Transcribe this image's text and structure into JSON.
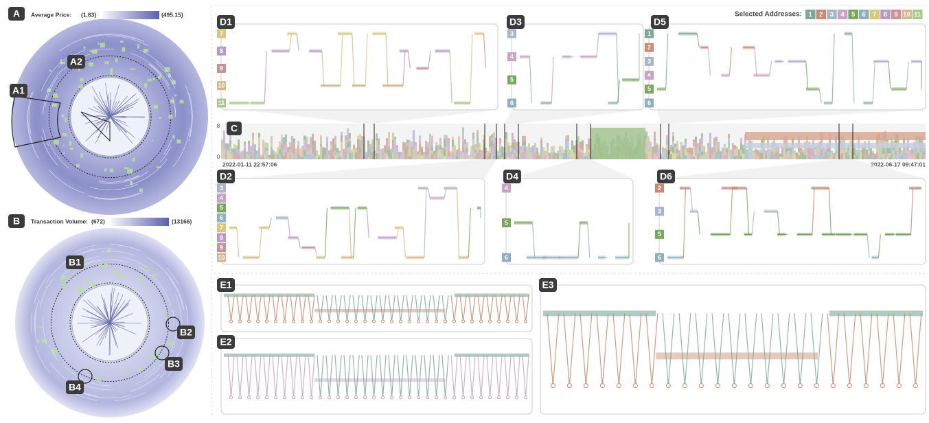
{
  "panel_a": {
    "label": "A",
    "legend_title": "Average Price:",
    "legend_min": "(1.83)",
    "legend_max": "(495.15)",
    "callouts": [
      "A1",
      "A2"
    ]
  },
  "panel_b": {
    "label": "B",
    "legend_title": "Transaction Volume:",
    "legend_min": "(672)",
    "legend_max": "(13166)",
    "callouts": [
      "B1",
      "B2",
      "B3",
      "B4"
    ]
  },
  "selected_addresses": {
    "title": "Selected Addresses:",
    "items": [
      "1",
      "2",
      "3",
      "4",
      "5",
      "6",
      "7",
      "8",
      "9",
      "10",
      "11"
    ],
    "colors": [
      "#7fa89a",
      "#c98a6f",
      "#a9b3cc",
      "#c9a3c0",
      "#7aa660",
      "#8fb0c0",
      "#d8c67a",
      "#b89bc4",
      "#c9929a",
      "#d1b98a",
      "#a8c88c"
    ]
  },
  "panel_c": {
    "label": "C",
    "y_top": "8",
    "y_bottom": "0",
    "start_time": "2022-01-11 22:57:06",
    "end_time": "2022-06-17 09:47:01"
  },
  "d_panels": [
    {
      "label": "D1",
      "addresses": [
        "7",
        "8",
        "9",
        "10",
        "11"
      ]
    },
    {
      "label": "D3",
      "addresses": [
        "3",
        "4",
        "5",
        "6"
      ]
    },
    {
      "label": "D5",
      "addresses": [
        "1",
        "2",
        "3",
        "4",
        "5",
        "6"
      ]
    },
    {
      "label": "D2",
      "addresses": [
        "3",
        "4",
        "5",
        "6",
        "7",
        "8",
        "9",
        "10"
      ]
    },
    {
      "label": "D4",
      "addresses": [
        "4",
        "5",
        "6"
      ]
    },
    {
      "label": "D6",
      "addresses": [
        "2",
        "3",
        "5",
        "6"
      ]
    }
  ],
  "e_panels": [
    {
      "label": "E1"
    },
    {
      "label": "E2"
    },
    {
      "label": "E3"
    }
  ]
}
